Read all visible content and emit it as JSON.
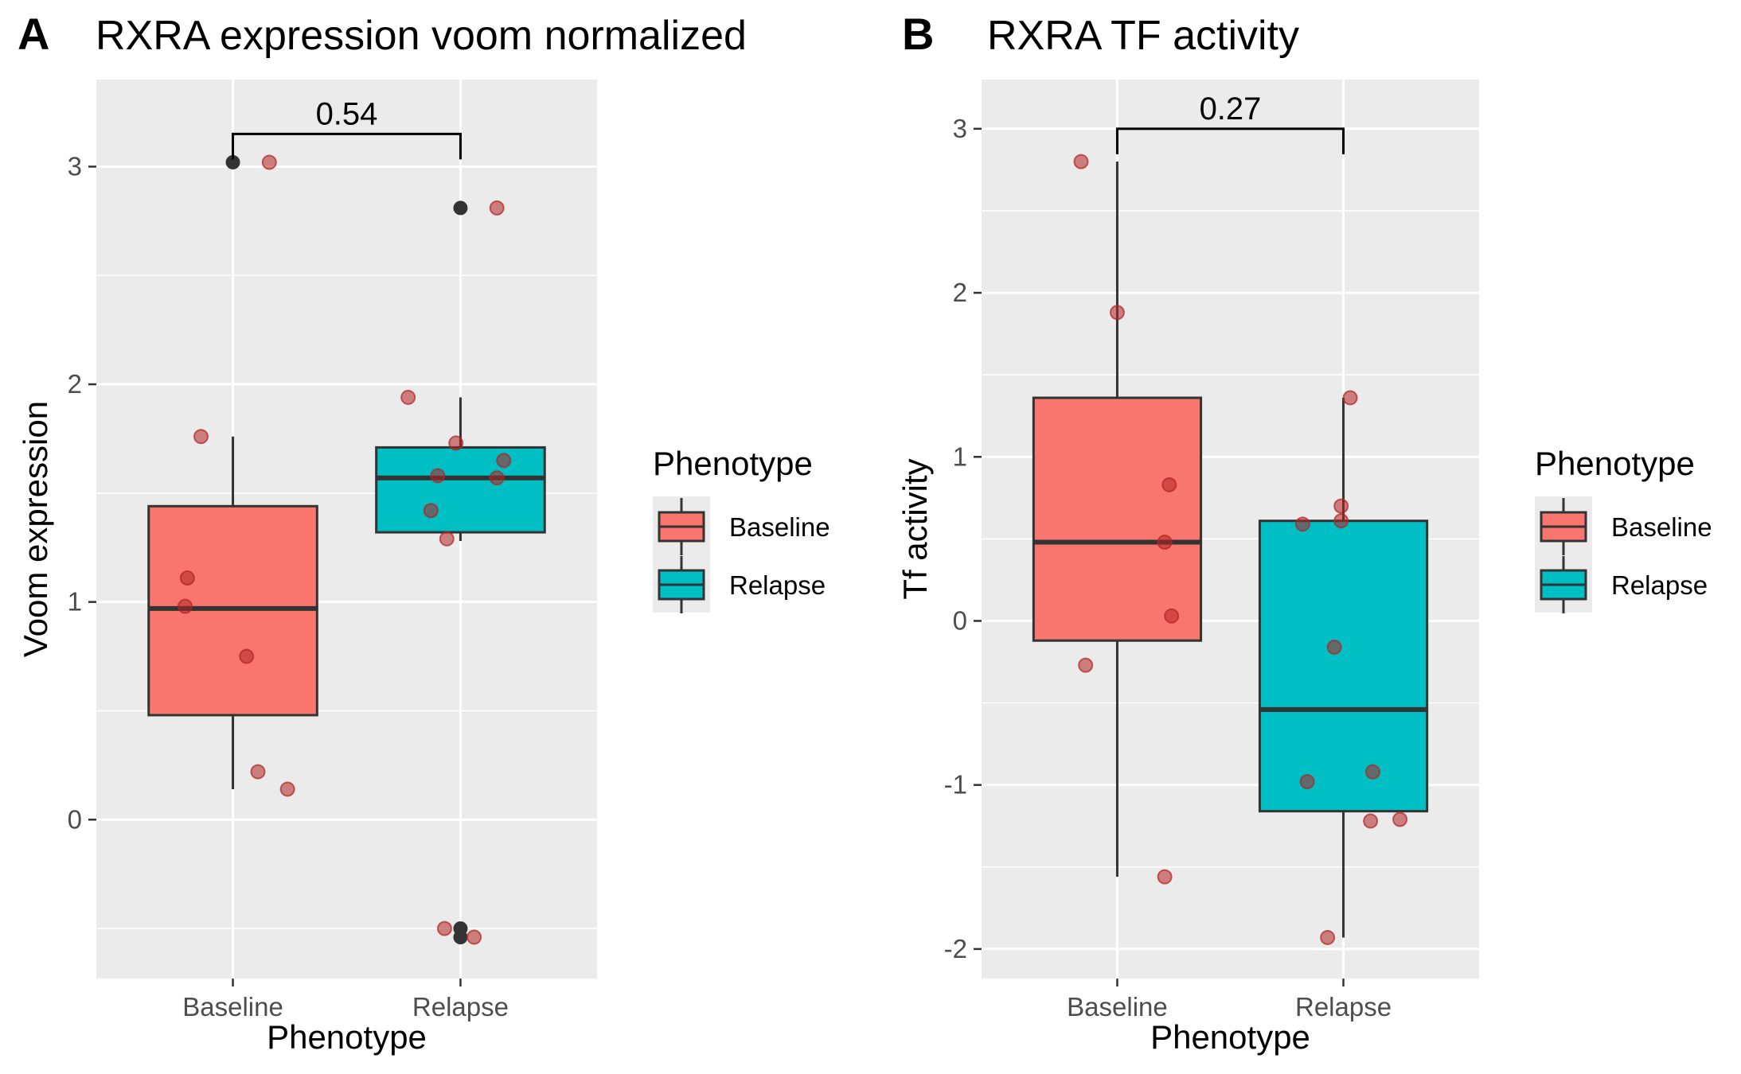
{
  "chart_data": [
    {
      "type": "box",
      "panel": "A",
      "title": "RXRA expression voom normalized",
      "xlabel": "Phenotype",
      "ylabel": "Voom expression",
      "categories": [
        "Baseline",
        "Relapse"
      ],
      "ylim": [
        -0.73,
        3.4
      ],
      "yticks": [
        0,
        1,
        2,
        3
      ],
      "grid": true,
      "legend_position": "right",
      "significance": {
        "from": "Baseline",
        "to": "Relapse",
        "label": "0.54",
        "y": 3.15
      },
      "boxes": [
        {
          "category": "Baseline",
          "q1": 0.48,
          "median": 0.97,
          "q3": 1.44,
          "whisker_low": 0.14,
          "whisker_high": 1.76,
          "fill": "#F8766D",
          "outliers": [
            3.02
          ]
        },
        {
          "category": "Relapse",
          "q1": 1.32,
          "median": 1.57,
          "q3": 1.71,
          "whisker_low": 1.28,
          "whisker_high": 1.94,
          "fill": "#00BFC4",
          "outliers": [
            2.81,
            -0.5,
            -0.54
          ]
        }
      ],
      "points": [
        {
          "category": "Baseline",
          "jitter": 0.16,
          "y": 3.02
        },
        {
          "category": "Baseline",
          "jitter": -0.14,
          "y": 1.76
        },
        {
          "category": "Baseline",
          "jitter": -0.2,
          "y": 1.11
        },
        {
          "category": "Baseline",
          "jitter": -0.21,
          "y": 0.98
        },
        {
          "category": "Baseline",
          "jitter": 0.06,
          "y": 0.75
        },
        {
          "category": "Baseline",
          "jitter": 0.11,
          "y": 0.22
        },
        {
          "category": "Baseline",
          "jitter": 0.24,
          "y": 0.14
        },
        {
          "category": "Relapse",
          "jitter": 0.16,
          "y": 2.81
        },
        {
          "category": "Relapse",
          "jitter": -0.23,
          "y": 1.94
        },
        {
          "category": "Relapse",
          "jitter": -0.02,
          "y": 1.73
        },
        {
          "category": "Relapse",
          "jitter": 0.19,
          "y": 1.65
        },
        {
          "category": "Relapse",
          "jitter": -0.1,
          "y": 1.58
        },
        {
          "category": "Relapse",
          "jitter": 0.16,
          "y": 1.57
        },
        {
          "category": "Relapse",
          "jitter": -0.13,
          "y": 1.42
        },
        {
          "category": "Relapse",
          "jitter": -0.06,
          "y": 1.29
        },
        {
          "category": "Relapse",
          "jitter": -0.07,
          "y": -0.5
        },
        {
          "category": "Relapse",
          "jitter": 0.06,
          "y": -0.54
        }
      ],
      "legend": {
        "title": "Phenotype",
        "entries": [
          {
            "label": "Baseline",
            "fill": "#F8766D"
          },
          {
            "label": "Relapse",
            "fill": "#00BFC4"
          }
        ]
      }
    },
    {
      "type": "box",
      "panel": "B",
      "title": "RXRA TF activity",
      "xlabel": "Phenotype",
      "ylabel": "Tf activity",
      "categories": [
        "Baseline",
        "Relapse"
      ],
      "ylim": [
        -2.18,
        3.3
      ],
      "yticks": [
        -2,
        -1,
        0,
        1,
        2,
        3
      ],
      "grid": true,
      "legend_position": "right",
      "significance": {
        "from": "Baseline",
        "to": "Relapse",
        "label": "0.27",
        "y": 3.0
      },
      "boxes": [
        {
          "category": "Baseline",
          "q1": -0.12,
          "median": 0.48,
          "q3": 1.36,
          "whisker_low": -1.56,
          "whisker_high": 2.8,
          "fill": "#F8766D",
          "outliers": []
        },
        {
          "category": "Relapse",
          "q1": -1.16,
          "median": -0.54,
          "q3": 0.61,
          "whisker_low": -1.93,
          "whisker_high": 1.36,
          "fill": "#00BFC4",
          "outliers": []
        }
      ],
      "points": [
        {
          "category": "Baseline",
          "jitter": -0.16,
          "y": 2.8
        },
        {
          "category": "Baseline",
          "jitter": 0.0,
          "y": 1.88
        },
        {
          "category": "Baseline",
          "jitter": 0.23,
          "y": 0.83
        },
        {
          "category": "Baseline",
          "jitter": 0.21,
          "y": 0.48
        },
        {
          "category": "Baseline",
          "jitter": 0.24,
          "y": 0.03
        },
        {
          "category": "Baseline",
          "jitter": -0.14,
          "y": -0.27
        },
        {
          "category": "Baseline",
          "jitter": 0.21,
          "y": -1.56
        },
        {
          "category": "Relapse",
          "jitter": 0.03,
          "y": 1.36
        },
        {
          "category": "Relapse",
          "jitter": -0.01,
          "y": 0.7
        },
        {
          "category": "Relapse",
          "jitter": -0.18,
          "y": 0.59
        },
        {
          "category": "Relapse",
          "jitter": -0.01,
          "y": 0.61
        },
        {
          "category": "Relapse",
          "jitter": -0.04,
          "y": -0.16
        },
        {
          "category": "Relapse",
          "jitter": -0.16,
          "y": -0.98
        },
        {
          "category": "Relapse",
          "jitter": 0.13,
          "y": -0.92
        },
        {
          "category": "Relapse",
          "jitter": 0.12,
          "y": -1.22
        },
        {
          "category": "Relapse",
          "jitter": 0.25,
          "y": -1.21
        },
        {
          "category": "Relapse",
          "jitter": -0.07,
          "y": -1.93
        }
      ],
      "legend": {
        "title": "Phenotype",
        "entries": [
          {
            "label": "Baseline",
            "fill": "#F8766D"
          },
          {
            "label": "Relapse",
            "fill": "#00BFC4"
          }
        ]
      }
    }
  ],
  "colors": {
    "panel_background": "#EBEBEB",
    "grid": "#FFFFFF",
    "box_outline": "#333333",
    "jitter_point": "#B22222",
    "outlier_point": "#333333"
  }
}
